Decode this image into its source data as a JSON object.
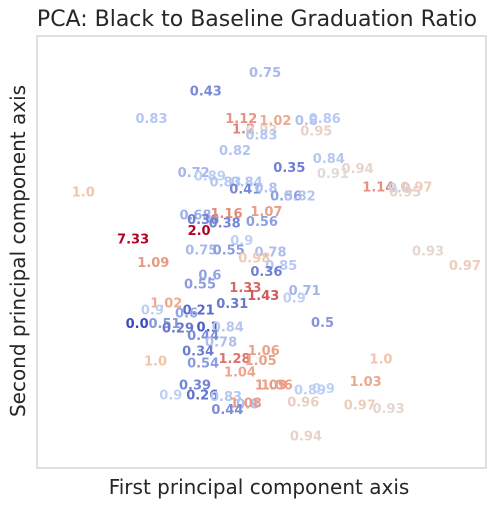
{
  "chart_data": {
    "type": "scatter",
    "title": "PCA: Black to Baseline Graduation Ratio",
    "xlabel": "First principal component axis",
    "ylabel": "Second principal component axis",
    "xlim": [
      0,
      100
    ],
    "ylim": [
      0,
      100
    ],
    "grid": false,
    "legend": "none",
    "colormap": "coolwarm",
    "color_range": [
      0.0,
      7.33
    ],
    "points": [
      {
        "label": "0.75",
        "x": 50.8,
        "y": 91.3
      },
      {
        "label": "0.43",
        "x": 37.6,
        "y": 87.0
      },
      {
        "label": "0.83",
        "x": 25.5,
        "y": 80.7
      },
      {
        "label": "1.12",
        "x": 45.5,
        "y": 80.7
      },
      {
        "label": "1.02",
        "x": 53.1,
        "y": 80.2
      },
      {
        "label": "0.8",
        "x": 60.0,
        "y": 80.2
      },
      {
        "label": "0.86",
        "x": 64.1,
        "y": 80.7
      },
      {
        "label": "1.2",
        "x": 46.0,
        "y": 78.2
      },
      {
        "label": "0.93",
        "x": 50.0,
        "y": 78.0
      },
      {
        "label": "0.95",
        "x": 62.2,
        "y": 77.8
      },
      {
        "label": "0.83",
        "x": 50.0,
        "y": 76.8
      },
      {
        "label": "0.82",
        "x": 44.1,
        "y": 73.3
      },
      {
        "label": "0.84",
        "x": 65.0,
        "y": 71.4
      },
      {
        "label": "0.35",
        "x": 56.2,
        "y": 69.3
      },
      {
        "label": "0.94",
        "x": 71.4,
        "y": 69.1
      },
      {
        "label": "0.72",
        "x": 34.9,
        "y": 68.2
      },
      {
        "label": "0.89",
        "x": 38.5,
        "y": 67.4
      },
      {
        "label": "0.91",
        "x": 65.9,
        "y": 67.9
      },
      {
        "label": "0.83",
        "x": 42.0,
        "y": 66.0
      },
      {
        "label": "0.84",
        "x": 46.7,
        "y": 66.0
      },
      {
        "label": "0.41",
        "x": 46.4,
        "y": 64.3
      },
      {
        "label": "0.8",
        "x": 51.0,
        "y": 64.6
      },
      {
        "label": "1.0",
        "x": 10.3,
        "y": 63.7
      },
      {
        "label": "1.14",
        "x": 76.0,
        "y": 64.8
      },
      {
        "label": "0.9",
        "x": 80.7,
        "y": 64.6
      },
      {
        "label": "0.97",
        "x": 84.5,
        "y": 64.8
      },
      {
        "label": "0.95",
        "x": 82.0,
        "y": 63.6
      },
      {
        "label": "0.56",
        "x": 55.5,
        "y": 62.7
      },
      {
        "label": "0.82",
        "x": 58.5,
        "y": 62.7
      },
      {
        "label": "0.68",
        "x": 35.3,
        "y": 58.3
      },
      {
        "label": "0.36",
        "x": 37.0,
        "y": 57.3
      },
      {
        "label": "1.16",
        "x": 42.2,
        "y": 58.7
      },
      {
        "label": "1.07",
        "x": 51.1,
        "y": 59.1
      },
      {
        "label": "0.38",
        "x": 41.8,
        "y": 56.5
      },
      {
        "label": "0.56",
        "x": 50.1,
        "y": 56.8
      },
      {
        "label": "2.0",
        "x": 36.1,
        "y": 54.8
      },
      {
        "label": "7.33",
        "x": 21.4,
        "y": 52.8
      },
      {
        "label": "0.9",
        "x": 45.6,
        "y": 52.4
      },
      {
        "label": "0.75",
        "x": 36.6,
        "y": 50.2
      },
      {
        "label": "0.55",
        "x": 42.7,
        "y": 50.2
      },
      {
        "label": "0.78",
        "x": 52.0,
        "y": 49.8
      },
      {
        "label": "0.98",
        "x": 48.4,
        "y": 48.4
      },
      {
        "label": "0.85",
        "x": 54.4,
        "y": 46.6
      },
      {
        "label": "1.09",
        "x": 25.9,
        "y": 47.3
      },
      {
        "label": "0.93",
        "x": 87.1,
        "y": 50.0
      },
      {
        "label": "0.97",
        "x": 95.3,
        "y": 46.6
      },
      {
        "label": "0.36",
        "x": 51.1,
        "y": 45.2
      },
      {
        "label": "0.6",
        "x": 38.5,
        "y": 44.4
      },
      {
        "label": "0.55",
        "x": 36.3,
        "y": 42.4
      },
      {
        "label": "1.33",
        "x": 46.4,
        "y": 41.6
      },
      {
        "label": "1.43",
        "x": 50.4,
        "y": 39.7
      },
      {
        "label": "0.71",
        "x": 59.6,
        "y": 40.8
      },
      {
        "label": "0.9",
        "x": 57.3,
        "y": 39.1
      },
      {
        "label": "0.31",
        "x": 43.5,
        "y": 37.8
      },
      {
        "label": "1.02",
        "x": 28.8,
        "y": 38.0
      },
      {
        "label": "0.9",
        "x": 25.7,
        "y": 36.3
      },
      {
        "label": "0.21",
        "x": 36.0,
        "y": 36.3
      },
      {
        "label": "0.6",
        "x": 33.3,
        "y": 35.6
      },
      {
        "label": "0.5",
        "x": 63.6,
        "y": 33.4
      },
      {
        "label": "0.0",
        "x": 22.3,
        "y": 33.2
      },
      {
        "label": "0.51",
        "x": 28.4,
        "y": 33.2
      },
      {
        "label": "0.29",
        "x": 31.4,
        "y": 32.2
      },
      {
        "label": "0.1",
        "x": 38.1,
        "y": 32.4
      },
      {
        "label": "0.84",
        "x": 42.5,
        "y": 32.4
      },
      {
        "label": "0.44",
        "x": 37.0,
        "y": 30.4
      },
      {
        "label": "0.78",
        "x": 41.0,
        "y": 28.9
      },
      {
        "label": "0.34",
        "x": 35.9,
        "y": 26.9
      },
      {
        "label": "1.06",
        "x": 50.5,
        "y": 27.0
      },
      {
        "label": "1.0",
        "x": 26.4,
        "y": 24.5
      },
      {
        "label": "0.54",
        "x": 37.0,
        "y": 24.1
      },
      {
        "label": "1.28",
        "x": 44.0,
        "y": 25.1
      },
      {
        "label": "1.05",
        "x": 49.8,
        "y": 24.7
      },
      {
        "label": "1.0",
        "x": 76.6,
        "y": 25.0
      },
      {
        "label": "1.04",
        "x": 45.2,
        "y": 22.0
      },
      {
        "label": "0.39",
        "x": 35.2,
        "y": 19.0
      },
      {
        "label": "1.09",
        "x": 52.1,
        "y": 19.0
      },
      {
        "label": "1.06",
        "x": 53.4,
        "y": 19.0
      },
      {
        "label": "1.03",
        "x": 73.2,
        "y": 19.8
      },
      {
        "label": "0.89",
        "x": 60.8,
        "y": 17.8
      },
      {
        "label": "0.9",
        "x": 63.8,
        "y": 18.2
      },
      {
        "label": "0.9",
        "x": 29.8,
        "y": 16.7
      },
      {
        "label": "0.26",
        "x": 36.8,
        "y": 16.7
      },
      {
        "label": "0.83",
        "x": 42.1,
        "y": 16.3
      },
      {
        "label": "0.96",
        "x": 59.3,
        "y": 15.0
      },
      {
        "label": "0.8",
        "x": 46.9,
        "y": 14.6
      },
      {
        "label": "1.08",
        "x": 46.5,
        "y": 14.8
      },
      {
        "label": "0.44",
        "x": 42.4,
        "y": 13.3
      },
      {
        "label": "0.97",
        "x": 71.9,
        "y": 14.3
      },
      {
        "label": "0.93",
        "x": 78.3,
        "y": 13.5
      },
      {
        "label": "0.94",
        "x": 59.9,
        "y": 7.2
      }
    ]
  }
}
